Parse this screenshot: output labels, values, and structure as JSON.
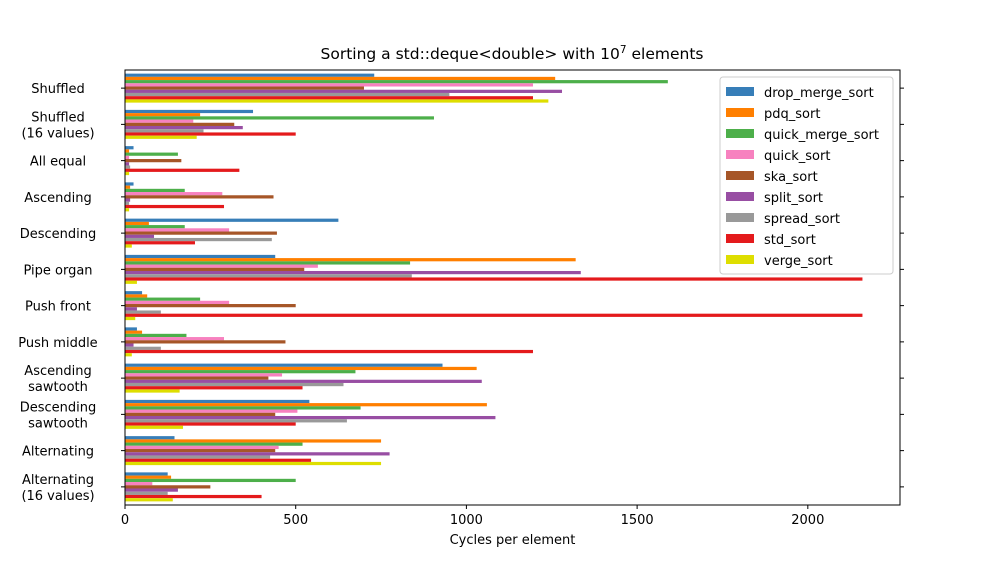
{
  "chart_data": {
    "type": "bar",
    "orientation": "horizontal",
    "title": "Sorting a std::deque<double> with 10",
    "title_superscript": "7",
    "title_suffix": " elements",
    "xlabel": "Cycles per element",
    "ylabel": "",
    "xlim": [
      0,
      2270
    ],
    "xticks": [
      "0",
      "500",
      "1000",
      "1500",
      "2000"
    ],
    "grid": false,
    "legend_position": "top-right",
    "categories": [
      "Shuffled",
      "Shuffled\n(16 values)",
      "All equal",
      "Ascending",
      "Descending",
      "Pipe organ",
      "Push front",
      "Push middle",
      "Ascending\nsawtooth",
      "Descending\nsawtooth",
      "Alternating",
      "Alternating\n(16 values)"
    ],
    "series": [
      {
        "name": "drop_merge_sort",
        "color": "#377eb8",
        "values": [
          730,
          375,
          25,
          25,
          625,
          440,
          50,
          35,
          930,
          540,
          145,
          125
        ]
      },
      {
        "name": "pdq_sort",
        "color": "#ff7f00",
        "values": [
          1260,
          220,
          12,
          15,
          70,
          1320,
          65,
          50,
          1030,
          1060,
          750,
          135
        ]
      },
      {
        "name": "quick_merge_sort",
        "color": "#4daf4a",
        "values": [
          1590,
          905,
          155,
          175,
          175,
          835,
          220,
          180,
          675,
          690,
          520,
          500
        ]
      },
      {
        "name": "quick_sort",
        "color": "#f781bf",
        "values": [
          1195,
          200,
          12,
          285,
          305,
          565,
          305,
          290,
          460,
          505,
          450,
          80
        ]
      },
      {
        "name": "ska_sort",
        "color": "#a65628",
        "values": [
          700,
          320,
          165,
          435,
          445,
          525,
          500,
          470,
          420,
          440,
          440,
          250
        ]
      },
      {
        "name": "split_sort",
        "color": "#984ea3",
        "values": [
          1280,
          345,
          12,
          15,
          85,
          1335,
          35,
          25,
          1045,
          1085,
          775,
          155
        ]
      },
      {
        "name": "spread_sort",
        "color": "#999999",
        "values": [
          950,
          230,
          15,
          12,
          430,
          840,
          105,
          105,
          640,
          650,
          425,
          125
        ]
      },
      {
        "name": "std_sort",
        "color": "#e41a1c",
        "values": [
          1195,
          500,
          335,
          290,
          205,
          2160,
          2160,
          1195,
          520,
          500,
          545,
          400
        ]
      },
      {
        "name": "verge_sort",
        "color": "#dede00",
        "values": [
          1240,
          210,
          12,
          12,
          20,
          35,
          30,
          20,
          160,
          170,
          750,
          140
        ]
      }
    ]
  }
}
